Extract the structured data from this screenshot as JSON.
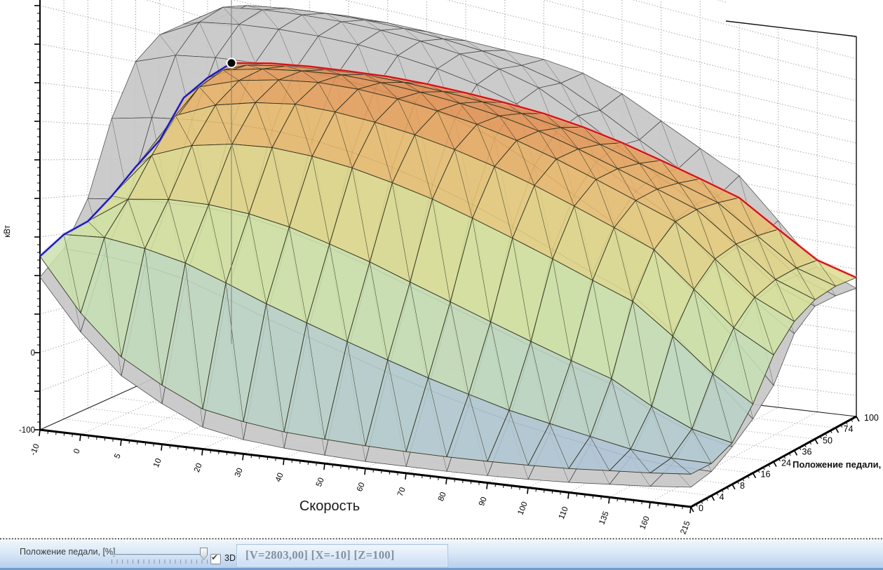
{
  "chart_data": {
    "type": "surface",
    "title": "",
    "xlabel": "Скорость",
    "ylabel": "кВт",
    "zlabel": "Положение педали, [%]",
    "x_ticks": [
      -10,
      0,
      5,
      10,
      20,
      30,
      40,
      50,
      60,
      70,
      80,
      90,
      100,
      110,
      135,
      160,
      215
    ],
    "z_ticks": [
      0,
      4,
      8,
      16,
      24,
      36,
      50,
      74,
      100
    ],
    "y_axis_visible_tick_labels": [
      {
        "value": 0,
        "label": "0"
      },
      {
        "value": -100,
        "label": "-100"
      }
    ],
    "y_floor": -100,
    "grid": "dotted",
    "series": [
      {
        "name": "colored_surface",
        "rows_by_pedal": [
          [
            125,
            60,
            10,
            -20,
            -45,
            -55,
            -62,
            -65,
            -67,
            -68,
            -68,
            -67,
            -65,
            -62,
            -57,
            -52,
            -45
          ],
          [
            149,
            155,
            150,
            140,
            122,
            102,
            84,
            66,
            48,
            30,
            14,
            -2,
            -14,
            -26,
            -38,
            -44,
            -44
          ],
          [
            163,
            205,
            216,
            220,
            218,
            210,
            196,
            180,
            160,
            140,
            119,
            98,
            77,
            57,
            20,
            -10,
            -25
          ],
          [
            196,
            268,
            295,
            310,
            318,
            318,
            313,
            303,
            290,
            272,
            252,
            230,
            206,
            182,
            132,
            75,
            30
          ],
          [
            238,
            330,
            360,
            378,
            390,
            392,
            390,
            384,
            374,
            360,
            342,
            320,
            296,
            270,
            210,
            150,
            110
          ],
          [
            280,
            380,
            405,
            421,
            432,
            436,
            435,
            430,
            422,
            409,
            391,
            369,
            345,
            320,
            262,
            200,
            165
          ],
          [
            353,
            415,
            432,
            444,
            453,
            455,
            454,
            450,
            443,
            431,
            413,
            391,
            367,
            342,
            287,
            228,
            200
          ],
          [
            394,
            432,
            446,
            455,
            462,
            464,
            463,
            460,
            454,
            443,
            426,
            404,
            380,
            355,
            300,
            245,
            220
          ],
          [
            430,
            445,
            455,
            462,
            468,
            470,
            469,
            466,
            461,
            450,
            434,
            413,
            390,
            365,
            310,
            255,
            230
          ]
        ]
      },
      {
        "name": "gray_surface",
        "rows_by_pedal": [
          [
            98,
            35,
            -15,
            -45,
            -70,
            -80,
            -85,
            -88,
            -90,
            -90,
            -90,
            -89,
            -87,
            -84,
            -79,
            -74,
            -67
          ],
          [
            130,
            130,
            126,
            117,
            100,
            81,
            64,
            47,
            29,
            12,
            -4,
            -19,
            -30,
            -40,
            -52,
            -57,
            -58
          ],
          [
            195,
            205,
            211,
            215,
            213,
            204,
            190,
            173,
            153,
            133,
            112,
            90,
            68,
            48,
            12,
            -16,
            -32
          ],
          [
            310,
            324,
            334,
            341,
            345,
            344,
            338,
            328,
            314,
            295,
            272,
            246,
            219,
            193,
            140,
            68,
            2
          ],
          [
            400,
            424,
            435,
            442,
            447,
            449,
            446,
            439,
            427,
            409,
            377,
            340,
            304,
            269,
            205,
            130,
            50
          ],
          [
            450,
            486,
            498,
            506,
            511,
            513,
            511,
            505,
            494,
            476,
            442,
            402,
            363,
            324,
            254,
            193,
            140
          ],
          [
            478,
            523,
            535,
            543,
            548,
            550,
            548,
            542,
            532,
            514,
            478,
            436,
            395,
            354,
            279,
            216,
            186
          ],
          [
            492,
            540,
            552,
            560,
            565,
            567,
            565,
            560,
            550,
            533,
            496,
            453,
            411,
            369,
            292,
            228,
            198
          ],
          [
            500,
            548,
            562,
            570,
            575,
            576,
            576,
            575,
            575,
            565,
            540,
            500,
            458,
            415,
            330,
            240,
            205
          ]
        ]
      }
    ],
    "highlight": {
      "marker_at": {
        "x": -10,
        "z": 100
      },
      "red_edge": "pedal=100 row of colored surface",
      "blue_edge": "speed=-10 column of colored surface"
    },
    "colors": {
      "value_stops": [
        [
          -100,
          "#a7bbdb"
        ],
        [
          -50,
          "#aec5d8"
        ],
        [
          0,
          "#b7d0cc"
        ],
        [
          50,
          "#bfd9c0"
        ],
        [
          100,
          "#c7e1b3"
        ],
        [
          150,
          "#cfe4a5"
        ],
        [
          200,
          "#d8e399"
        ],
        [
          250,
          "#e0da8a"
        ],
        [
          300,
          "#e6cd7b"
        ],
        [
          350,
          "#eabb6b"
        ],
        [
          400,
          "#e9a65c"
        ],
        [
          440,
          "#e39150"
        ],
        [
          480,
          "#de7d45"
        ]
      ],
      "colored_mesh": "#34341f",
      "gray_fill": "#c7c7c7",
      "gray_mesh": "#3e3e3e",
      "red_edge": "#cc1616",
      "red_halo": "#ffb0a8",
      "blue_edge": "#1c14b8",
      "blue_halo": "#a8b0f0",
      "marker": "#0a0a0a",
      "grid_dotted": "#9a9a9a",
      "floor_dotted": "#ababab",
      "axis": "#111111"
    }
  },
  "statusbar": {
    "slider_label": "Положение педали, [%]",
    "slider_value_percent": 100,
    "checkbox_label": "3D",
    "checkbox_checked": true,
    "status_text": "[V=2803,00] [X=-10] [Z=100]"
  }
}
